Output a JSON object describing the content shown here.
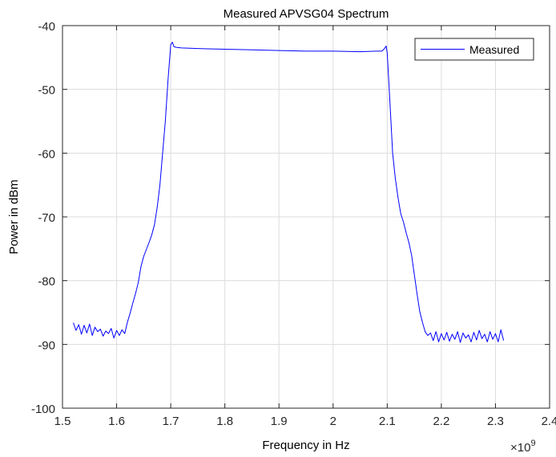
{
  "chart_data": {
    "type": "line",
    "title": "Measured APVSG04 Spectrum",
    "xlabel": "Frequency in Hz",
    "ylabel": "Power in dBm",
    "x_exponent_base": "×10",
    "x_exponent_power": "9",
    "xlim": [
      1.5,
      2.4
    ],
    "ylim": [
      -100,
      -40
    ],
    "xticks": [
      "1.5",
      "1.6",
      "1.7",
      "1.8",
      "1.9",
      "2",
      "2.1",
      "2.2",
      "2.3",
      "2.4"
    ],
    "yticks": [
      "-100",
      "-90",
      "-80",
      "-70",
      "-60",
      "-50",
      "-40"
    ],
    "grid": true,
    "legend_position": "top-right",
    "series": [
      {
        "name": "Measured",
        "color": "#0000ff",
        "x": [
          1.52,
          1.525,
          1.53,
          1.535,
          1.54,
          1.545,
          1.55,
          1.555,
          1.56,
          1.565,
          1.57,
          1.575,
          1.58,
          1.585,
          1.59,
          1.595,
          1.6,
          1.605,
          1.61,
          1.615,
          1.62,
          1.625,
          1.63,
          1.635,
          1.64,
          1.645,
          1.65,
          1.655,
          1.66,
          1.665,
          1.67,
          1.675,
          1.68,
          1.685,
          1.69,
          1.695,
          1.7,
          1.703,
          1.706,
          1.71,
          1.72,
          1.75,
          1.8,
          1.85,
          1.9,
          1.95,
          2.0,
          2.05,
          2.08,
          2.09,
          2.095,
          2.098,
          2.1,
          2.105,
          2.11,
          2.115,
          2.12,
          2.125,
          2.13,
          2.135,
          2.14,
          2.145,
          2.15,
          2.155,
          2.16,
          2.165,
          2.17,
          2.175,
          2.18,
          2.185,
          2.19,
          2.195,
          2.2,
          2.205,
          2.21,
          2.215,
          2.22,
          2.225,
          2.23,
          2.235,
          2.24,
          2.245,
          2.25,
          2.255,
          2.26,
          2.265,
          2.27,
          2.275,
          2.28,
          2.285,
          2.29,
          2.295,
          2.3,
          2.305,
          2.31,
          2.315
        ],
        "values": [
          -86.6,
          -87.8,
          -86.9,
          -88.4,
          -87.0,
          -88.2,
          -86.8,
          -88.6,
          -87.3,
          -88.0,
          -87.6,
          -88.7,
          -87.9,
          -88.3,
          -87.5,
          -89.0,
          -87.8,
          -88.6,
          -87.7,
          -88.3,
          -86.5,
          -85.1,
          -83.5,
          -82.0,
          -80.3,
          -77.8,
          -76.2,
          -75.1,
          -74.0,
          -72.8,
          -71.2,
          -68.5,
          -65.0,
          -60.0,
          -55.0,
          -48.5,
          -43.0,
          -42.6,
          -43.3,
          -43.4,
          -43.5,
          -43.6,
          -43.7,
          -43.8,
          -43.9,
          -44.0,
          -44.0,
          -44.1,
          -44.0,
          -44.0,
          -43.6,
          -43.2,
          -44.3,
          -52.0,
          -60.0,
          -64.0,
          -67.0,
          -69.5,
          -70.8,
          -72.5,
          -74.0,
          -76.0,
          -79.0,
          -82.0,
          -84.8,
          -86.5,
          -88.0,
          -88.6,
          -88.2,
          -89.4,
          -88.0,
          -89.6,
          -88.3,
          -89.3,
          -88.1,
          -89.5,
          -88.4,
          -89.2,
          -88.0,
          -89.7,
          -88.2,
          -89.0,
          -88.5,
          -89.6,
          -88.1,
          -89.3,
          -87.8,
          -89.1,
          -88.4,
          -89.6,
          -88.0,
          -89.2,
          -88.3,
          -89.6,
          -87.7,
          -89.4
        ]
      }
    ]
  }
}
